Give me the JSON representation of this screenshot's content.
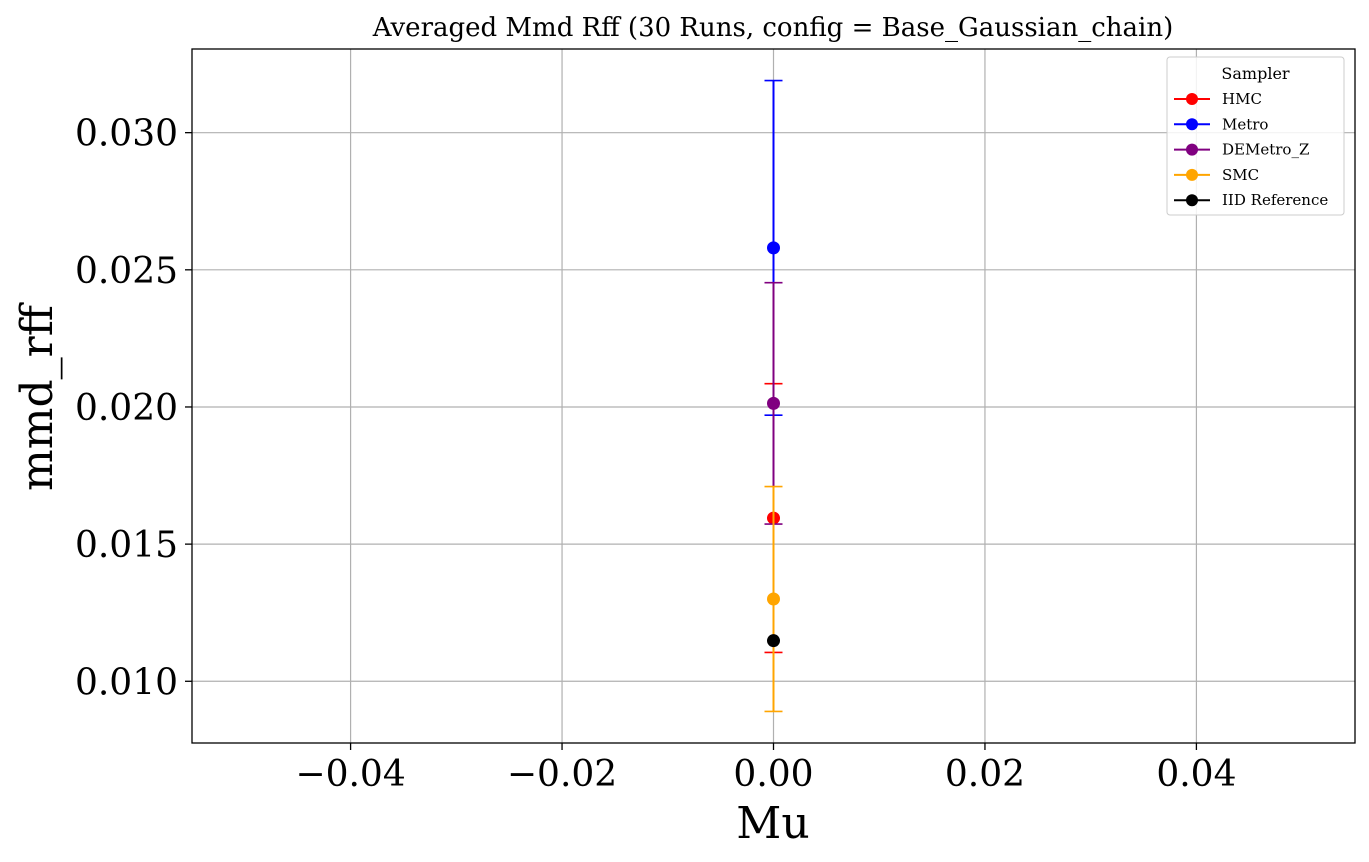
{
  "chart_data": {
    "type": "scatter",
    "title": "Averaged Mmd Rff (30 Runs, config = Base_Gaussian_chain)",
    "xlabel": "Mu",
    "ylabel": "mmd_rff",
    "xlim": [
      -0.055,
      0.055
    ],
    "ylim": [
      0.00775,
      0.03305
    ],
    "xticks": [
      -0.04,
      -0.02,
      0.0,
      0.02,
      0.04
    ],
    "xtick_labels": [
      "−0.04",
      "−0.02",
      "0.00",
      "0.02",
      "0.04"
    ],
    "yticks": [
      0.01,
      0.015,
      0.02,
      0.025,
      0.03
    ],
    "ytick_labels": [
      "0.010",
      "0.015",
      "0.020",
      "0.025",
      "0.030"
    ],
    "grid": true,
    "legend": {
      "title": "Sampler",
      "placement": "upper right"
    },
    "series": [
      {
        "name": "HMC",
        "color": "#ff0000",
        "x": [
          0.0
        ],
        "y": [
          0.01595
        ],
        "err": [
          0.0049
        ]
      },
      {
        "name": "Metro",
        "color": "#0000ff",
        "x": [
          0.0
        ],
        "y": [
          0.0258
        ],
        "err": [
          0.0061
        ]
      },
      {
        "name": "DEMetro_Z",
        "color": "#800080",
        "x": [
          0.0
        ],
        "y": [
          0.02013
        ],
        "err": [
          0.0044
        ]
      },
      {
        "name": "SMC",
        "color": "#ffa500",
        "x": [
          0.0
        ],
        "y": [
          0.013
        ],
        "err": [
          0.0041
        ]
      },
      {
        "name": "IID Reference",
        "color": "#000000",
        "x": [
          0.0
        ],
        "y": [
          0.01148
        ],
        "err": [
          0.0
        ]
      }
    ]
  }
}
